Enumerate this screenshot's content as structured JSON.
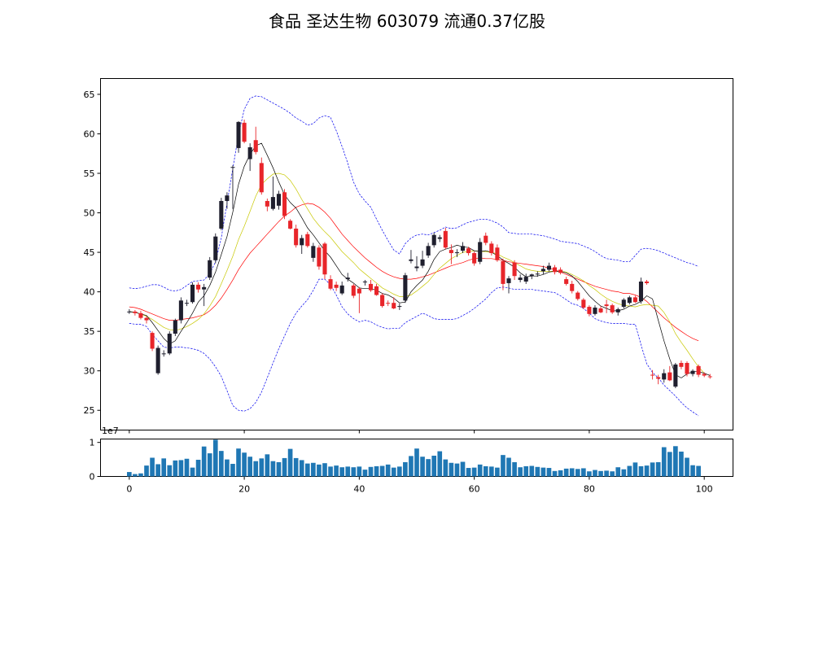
{
  "chart_data": [
    {
      "type": "candlestick",
      "title": "食品 圣达生物 603079 流通0.37亿股",
      "xlim": [
        -5,
        105
      ],
      "ylim": [
        22.5,
        67
      ],
      "xticks": [
        0,
        20,
        40,
        60,
        80,
        100
      ],
      "yticks": [
        25,
        30,
        35,
        40,
        45,
        50,
        55,
        60,
        65
      ],
      "x_start": 0,
      "up_color": "#1f1f2e",
      "down_color": "#e8252a",
      "ohlc": [
        [
          37.4,
          37.8,
          37.2,
          37.5
        ],
        [
          37.5,
          37.7,
          37.0,
          37.3
        ],
        [
          37.3,
          37.6,
          36.5,
          36.7
        ],
        [
          36.7,
          36.9,
          36.0,
          36.4
        ],
        [
          34.8,
          35.0,
          32.5,
          32.8
        ],
        [
          29.7,
          33.2,
          29.5,
          32.9
        ],
        [
          32.1,
          32.6,
          31.8,
          32.2
        ],
        [
          32.2,
          35.0,
          32.0,
          34.7
        ],
        [
          34.7,
          36.6,
          34.4,
          36.4
        ],
        [
          36.4,
          39.3,
          36.0,
          38.9
        ],
        [
          38.6,
          39.0,
          38.2,
          38.6
        ],
        [
          38.7,
          41.2,
          38.5,
          40.9
        ],
        [
          40.9,
          41.2,
          39.9,
          40.3
        ],
        [
          40.3,
          41.0,
          38.2,
          40.6
        ],
        [
          41.8,
          44.4,
          41.5,
          44.0
        ],
        [
          44.0,
          47.4,
          43.6,
          47.0
        ],
        [
          48.0,
          51.9,
          47.8,
          51.5
        ],
        [
          51.5,
          52.6,
          50.5,
          52.2
        ],
        [
          55.8,
          56.0,
          50.5,
          55.8
        ],
        [
          58.2,
          61.6,
          57.6,
          61.5
        ],
        [
          61.4,
          61.8,
          58.8,
          59.0
        ],
        [
          56.8,
          58.8,
          55.3,
          58.3
        ],
        [
          59.2,
          60.9,
          57.4,
          57.7
        ],
        [
          56.3,
          57.0,
          52.3,
          52.6
        ],
        [
          51.5,
          51.8,
          50.2,
          50.8
        ],
        [
          50.5,
          54.6,
          50.3,
          52.0
        ],
        [
          50.9,
          52.8,
          50.4,
          52.4
        ],
        [
          52.6,
          53.0,
          49.2,
          49.6
        ],
        [
          49.0,
          49.2,
          47.9,
          48.0
        ],
        [
          48.0,
          48.5,
          45.6,
          45.9
        ],
        [
          45.9,
          47.2,
          44.8,
          46.8
        ],
        [
          47.3,
          47.6,
          45.6,
          45.8
        ],
        [
          44.3,
          46.2,
          43.8,
          45.8
        ],
        [
          45.6,
          45.9,
          42.8,
          43.2
        ],
        [
          46.1,
          46.3,
          41.6,
          42.2
        ],
        [
          41.6,
          42.1,
          40.2,
          40.4
        ],
        [
          40.9,
          41.3,
          40.1,
          40.5
        ],
        [
          39.8,
          41.3,
          39.6,
          40.8
        ],
        [
          41.6,
          42.4,
          41.3,
          41.8
        ],
        [
          40.8,
          41.0,
          39.2,
          39.5
        ],
        [
          40.4,
          40.6,
          37.3,
          39.8
        ],
        [
          41.2,
          41.5,
          40.8,
          41.3
        ],
        [
          41.0,
          41.5,
          40.0,
          40.2
        ],
        [
          40.7,
          41.0,
          39.5,
          39.6
        ],
        [
          39.6,
          39.8,
          38.0,
          38.2
        ],
        [
          38.6,
          38.9,
          38.2,
          38.5
        ],
        [
          38.6,
          39.3,
          37.8,
          37.9
        ],
        [
          38.2,
          38.5,
          37.7,
          38.2
        ],
        [
          38.9,
          42.4,
          38.6,
          42.1
        ],
        [
          43.9,
          45.3,
          43.6,
          44.1
        ],
        [
          43.0,
          44.5,
          42.6,
          43.2
        ],
        [
          43.3,
          45.2,
          43.0,
          44.1
        ],
        [
          44.6,
          46.2,
          44.3,
          45.8
        ],
        [
          45.9,
          47.5,
          45.6,
          47.2
        ],
        [
          46.7,
          47.2,
          46.3,
          46.9
        ],
        [
          47.7,
          48.1,
          45.4,
          45.6
        ],
        [
          45.3,
          46.0,
          43.5,
          44.9
        ],
        [
          44.9,
          45.4,
          44.4,
          45.0
        ],
        [
          45.2,
          46.3,
          44.9,
          45.8
        ],
        [
          45.5,
          45.7,
          44.6,
          44.9
        ],
        [
          44.9,
          45.1,
          43.3,
          43.6
        ],
        [
          43.8,
          46.8,
          43.5,
          46.3
        ],
        [
          47.1,
          47.5,
          45.9,
          46.2
        ],
        [
          46.1,
          46.4,
          44.6,
          44.9
        ],
        [
          45.6,
          46.0,
          43.8,
          44.0
        ],
        [
          43.9,
          44.2,
          40.2,
          41.0
        ],
        [
          41.1,
          42.0,
          39.8,
          41.7
        ],
        [
          43.7,
          44.0,
          41.5,
          42.0
        ],
        [
          41.5,
          42.2,
          41.2,
          41.8
        ],
        [
          41.3,
          42.3,
          41.0,
          41.9
        ],
        [
          42.0,
          42.3,
          41.6,
          42.2
        ],
        [
          42.3,
          42.6,
          41.9,
          42.3
        ],
        [
          42.6,
          43.3,
          42.2,
          42.9
        ],
        [
          42.8,
          43.7,
          42.6,
          43.3
        ],
        [
          43.1,
          43.4,
          42.2,
          42.5
        ],
        [
          42.8,
          43.1,
          42.2,
          42.4
        ],
        [
          41.6,
          41.9,
          40.8,
          41.0
        ],
        [
          41.0,
          41.4,
          39.8,
          40.1
        ],
        [
          39.9,
          40.1,
          38.9,
          39.1
        ],
        [
          39.0,
          39.2,
          37.8,
          38.0
        ],
        [
          38.1,
          38.3,
          36.9,
          37.2
        ],
        [
          37.2,
          38.3,
          37.0,
          38.0
        ],
        [
          37.9,
          38.2,
          37.3,
          37.4
        ],
        [
          38.4,
          39.0,
          37.3,
          38.2
        ],
        [
          38.3,
          38.5,
          37.2,
          37.4
        ],
        [
          37.4,
          38.0,
          37.0,
          37.8
        ],
        [
          38.1,
          39.2,
          37.9,
          39.0
        ],
        [
          38.6,
          39.5,
          38.4,
          39.3
        ],
        [
          39.3,
          39.5,
          38.6,
          38.7
        ],
        [
          38.8,
          41.8,
          38.5,
          41.3
        ],
        [
          41.3,
          41.5,
          40.9,
          41.1
        ],
        [
          29.5,
          30.1,
          28.9,
          29.4
        ],
        [
          29.2,
          29.5,
          28.3,
          29.0
        ],
        [
          28.9,
          30.2,
          28.5,
          29.7
        ],
        [
          29.8,
          30.6,
          28.7,
          28.8
        ],
        [
          28.0,
          31.0,
          27.8,
          30.8
        ],
        [
          31.0,
          31.3,
          30.2,
          30.5
        ],
        [
          31.0,
          31.2,
          29.3,
          29.6
        ],
        [
          29.6,
          30.2,
          29.3,
          30.0
        ],
        [
          30.6,
          30.8,
          29.2,
          29.5
        ],
        [
          29.6,
          29.8,
          29.2,
          29.4
        ],
        [
          29.3,
          29.6,
          29.0,
          29.2
        ]
      ],
      "band_upper": [
        40.5,
        40.4,
        40.5,
        40.7,
        40.9,
        40.9,
        40.6,
        40.2,
        40.1,
        40.3,
        40.8,
        41.3,
        41.4,
        41.5,
        42.3,
        43.8,
        46.8,
        51.2,
        55.6,
        59.9,
        63.1,
        64.5,
        64.8,
        64.7,
        64.3,
        63.9,
        63.5,
        63.1,
        62.6,
        62.0,
        61.6,
        61.1,
        61.3,
        62.0,
        62.3,
        62.1,
        60.4,
        58.4,
        56.3,
        53.9,
        52.4,
        51.5,
        50.7,
        49.2,
        47.8,
        46.5,
        45.3,
        44.8,
        46.1,
        46.8,
        47.2,
        47.3,
        47.2,
        47.5,
        47.8,
        48.2,
        48.0,
        48.1,
        48.5,
        48.8,
        49.0,
        49.2,
        49.2,
        49.0,
        48.7,
        48.2,
        47.5,
        47.4,
        47.3,
        47.3,
        47.3,
        47.2,
        47.1,
        46.9,
        46.7,
        46.4,
        46.3,
        46.2,
        46.1,
        45.8,
        45.5,
        45.1,
        44.6,
        44.2,
        44.1,
        44.0,
        43.8,
        43.8,
        44.6,
        45.4,
        45.5,
        45.4,
        45.2,
        44.9,
        44.6,
        44.3,
        44.0,
        43.7,
        43.5,
        43.2
      ],
      "band_lower": [
        36.0,
        35.9,
        35.9,
        35.6,
        34.6,
        33.8,
        33.0,
        32.9,
        33.0,
        33.0,
        32.9,
        32.8,
        32.6,
        32.2,
        31.5,
        30.5,
        29.3,
        27.5,
        25.6,
        25.0,
        24.9,
        25.2,
        26.0,
        27.3,
        29.1,
        31.0,
        32.8,
        34.4,
        36.0,
        37.3,
        38.2,
        39.0,
        40.2,
        41.6,
        41.6,
        40.9,
        39.6,
        38.1,
        37.2,
        36.6,
        36.2,
        36.4,
        36.2,
        35.8,
        35.5,
        35.3,
        35.4,
        35.4,
        36.1,
        36.5,
        36.9,
        37.3,
        37.0,
        36.6,
        36.5,
        36.5,
        36.5,
        36.6,
        37.0,
        37.4,
        37.9,
        38.5,
        39.1,
        39.9,
        40.5,
        40.6,
        40.5,
        40.3,
        40.3,
        40.3,
        40.3,
        40.2,
        40.1,
        40.0,
        39.9,
        39.5,
        39.0,
        38.5,
        38.3,
        37.9,
        37.3,
        36.6,
        36.3,
        36.1,
        36.0,
        36.0,
        36.0,
        35.9,
        35.9,
        33.3,
        30.9,
        29.8,
        29.1,
        28.2,
        27.5,
        26.8,
        26.0,
        25.3,
        24.8,
        24.3
      ],
      "ma_short": [
        37.5,
        37.4,
        37.2,
        37.0,
        36.1,
        35.1,
        34.1,
        33.4,
        33.8,
        35.0,
        36.1,
        37.3,
        38.7,
        39.5,
        40.8,
        42.5,
        44.7,
        47.0,
        50.1,
        53.6,
        55.9,
        57.4,
        58.5,
        58.8,
        57.3,
        55.7,
        53.9,
        52.3,
        51.3,
        50.6,
        49.4,
        48.1,
        47.2,
        46.2,
        45.2,
        44.4,
        43.3,
        42.2,
        41.6,
        41.1,
        40.5,
        40.4,
        40.4,
        40.2,
        39.8,
        39.6,
        39.2,
        38.6,
        38.7,
        40.0,
        40.8,
        41.5,
        42.6,
        44.1,
        45.1,
        45.4,
        45.6,
        45.9,
        45.7,
        45.6,
        45.2,
        45.1,
        45.2,
        45.0,
        44.6,
        44.0,
        43.6,
        43.1,
        42.4,
        41.9,
        42.0,
        42.0,
        42.2,
        42.5,
        42.6,
        42.6,
        42.4,
        42.0,
        41.3,
        40.4,
        39.5,
        38.8,
        38.2,
        37.9,
        37.6,
        37.6,
        37.8,
        38.2,
        38.4,
        38.8,
        39.5,
        39.1,
        36.4,
        33.8,
        31.5,
        29.5,
        29.1,
        29.6,
        29.9,
        29.9,
        29.7,
        29.4
      ],
      "ma_mid": [
        37.5,
        37.4,
        37.2,
        36.9,
        36.5,
        36.0,
        35.5,
        35.2,
        35.1,
        35.3,
        35.6,
        36.0,
        36.5,
        37.2,
        38.2,
        39.4,
        41.0,
        42.7,
        44.5,
        46.6,
        48.3,
        50.2,
        52.1,
        53.6,
        54.3,
        54.9,
        55.0,
        54.8,
        54.1,
        53.0,
        51.7,
        50.5,
        49.3,
        48.4,
        47.6,
        46.9,
        46.0,
        45.1,
        44.4,
        43.7,
        42.9,
        42.3,
        41.7,
        41.1,
        40.5,
        40.1,
        39.7,
        39.4,
        39.4,
        39.6,
        40.1,
        40.7,
        41.3,
        42.2,
        43.0,
        43.6,
        44.2,
        44.6,
        45.0,
        45.1,
        45.2,
        45.1,
        45.1,
        45.0,
        44.8,
        44.4,
        44.1,
        43.7,
        43.3,
        42.9,
        42.7,
        42.6,
        42.6,
        42.6,
        42.6,
        42.6,
        42.5,
        42.2,
        41.8,
        41.4,
        40.8,
        40.3,
        39.7,
        39.2,
        38.8,
        38.5,
        38.3,
        38.2,
        38.1,
        38.3,
        38.4,
        38.3,
        38.2,
        37.4,
        36.2,
        34.7,
        33.6,
        32.6,
        31.5,
        30.5,
        29.7
      ],
      "ma_long": [
        38.1,
        38.0,
        37.8,
        37.5,
        37.2,
        36.9,
        36.6,
        36.4,
        36.4,
        36.5,
        36.6,
        36.7,
        36.9,
        37.1,
        37.6,
        38.3,
        39.2,
        40.3,
        41.5,
        42.8,
        43.9,
        44.9,
        45.7,
        46.5,
        47.3,
        48.1,
        48.9,
        49.6,
        50.1,
        50.7,
        51.0,
        51.2,
        51.1,
        50.7,
        50.1,
        49.3,
        48.3,
        47.3,
        46.5,
        45.7,
        45.0,
        44.3,
        43.7,
        43.1,
        42.6,
        42.2,
        41.9,
        41.7,
        41.6,
        41.6,
        41.7,
        41.9,
        42.1,
        42.4,
        42.7,
        43.0,
        43.3,
        43.5,
        43.7,
        44.0,
        44.2,
        44.3,
        44.2,
        44.2,
        44.1,
        44.0,
        43.8,
        43.7,
        43.6,
        43.5,
        43.4,
        43.3,
        43.2,
        43.0,
        42.8,
        42.5,
        42.2,
        41.9,
        41.6,
        41.3,
        41.0,
        40.7,
        40.5,
        40.3,
        40.1,
        40.0,
        39.8,
        39.8,
        39.6,
        39.3,
        38.8,
        38.1,
        37.4,
        36.7,
        36.1,
        35.5,
        35.0,
        34.5,
        34.1,
        33.8
      ],
      "colors": {
        "band": "#0000ee",
        "ma_short": "#000000",
        "ma_mid": "#c8c800",
        "ma_long": "#ff0000"
      }
    },
    {
      "type": "bar",
      "ylim": [
        0,
        1.1
      ],
      "yticks": [
        0,
        1
      ],
      "exponent_label": "1e7",
      "x_start": 0,
      "bar_color": "#1f77b4",
      "values": [
        0.13,
        0.07,
        0.09,
        0.32,
        0.55,
        0.36,
        0.53,
        0.33,
        0.47,
        0.48,
        0.52,
        0.26,
        0.49,
        0.88,
        0.68,
        1.08,
        0.75,
        0.5,
        0.37,
        0.82,
        0.7,
        0.58,
        0.45,
        0.53,
        0.65,
        0.45,
        0.42,
        0.54,
        0.81,
        0.54,
        0.48,
        0.38,
        0.4,
        0.35,
        0.39,
        0.29,
        0.32,
        0.27,
        0.29,
        0.27,
        0.29,
        0.2,
        0.28,
        0.3,
        0.31,
        0.35,
        0.26,
        0.29,
        0.42,
        0.6,
        0.82,
        0.58,
        0.51,
        0.61,
        0.74,
        0.5,
        0.4,
        0.38,
        0.43,
        0.25,
        0.26,
        0.35,
        0.3,
        0.29,
        0.26,
        0.63,
        0.55,
        0.42,
        0.27,
        0.3,
        0.31,
        0.28,
        0.26,
        0.25,
        0.16,
        0.18,
        0.23,
        0.24,
        0.22,
        0.24,
        0.15,
        0.19,
        0.16,
        0.17,
        0.15,
        0.27,
        0.21,
        0.31,
        0.41,
        0.3,
        0.32,
        0.41,
        0.42,
        0.86,
        0.72,
        0.89,
        0.73,
        0.55,
        0.33,
        0.31
      ]
    }
  ]
}
